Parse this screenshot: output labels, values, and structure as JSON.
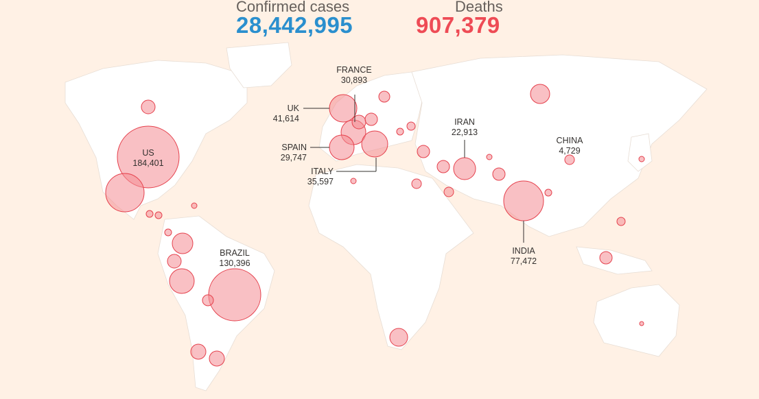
{
  "header": {
    "confirmed_label": "Confirmed cases",
    "confirmed_value": "28,442,995",
    "deaths_label": "Deaths",
    "deaths_value": "907,379"
  },
  "colors": {
    "confirmed": "#2a8fce",
    "deaths": "#ee4b55",
    "background": "#fff1e5",
    "land": "#ffffff"
  },
  "labeled_countries": [
    {
      "name": "US",
      "deaths": "184,401"
    },
    {
      "name": "BRAZIL",
      "deaths": "130,396"
    },
    {
      "name": "INDIA",
      "deaths": "77,472"
    },
    {
      "name": "UK",
      "deaths": "41,614"
    },
    {
      "name": "ITALY",
      "deaths": "35,597"
    },
    {
      "name": "FRANCE",
      "deaths": "30,893"
    },
    {
      "name": "SPAIN",
      "deaths": "29,747"
    },
    {
      "name": "IRAN",
      "deaths": "22,913"
    },
    {
      "name": "CHINA",
      "deaths": "4,729"
    }
  ]
}
